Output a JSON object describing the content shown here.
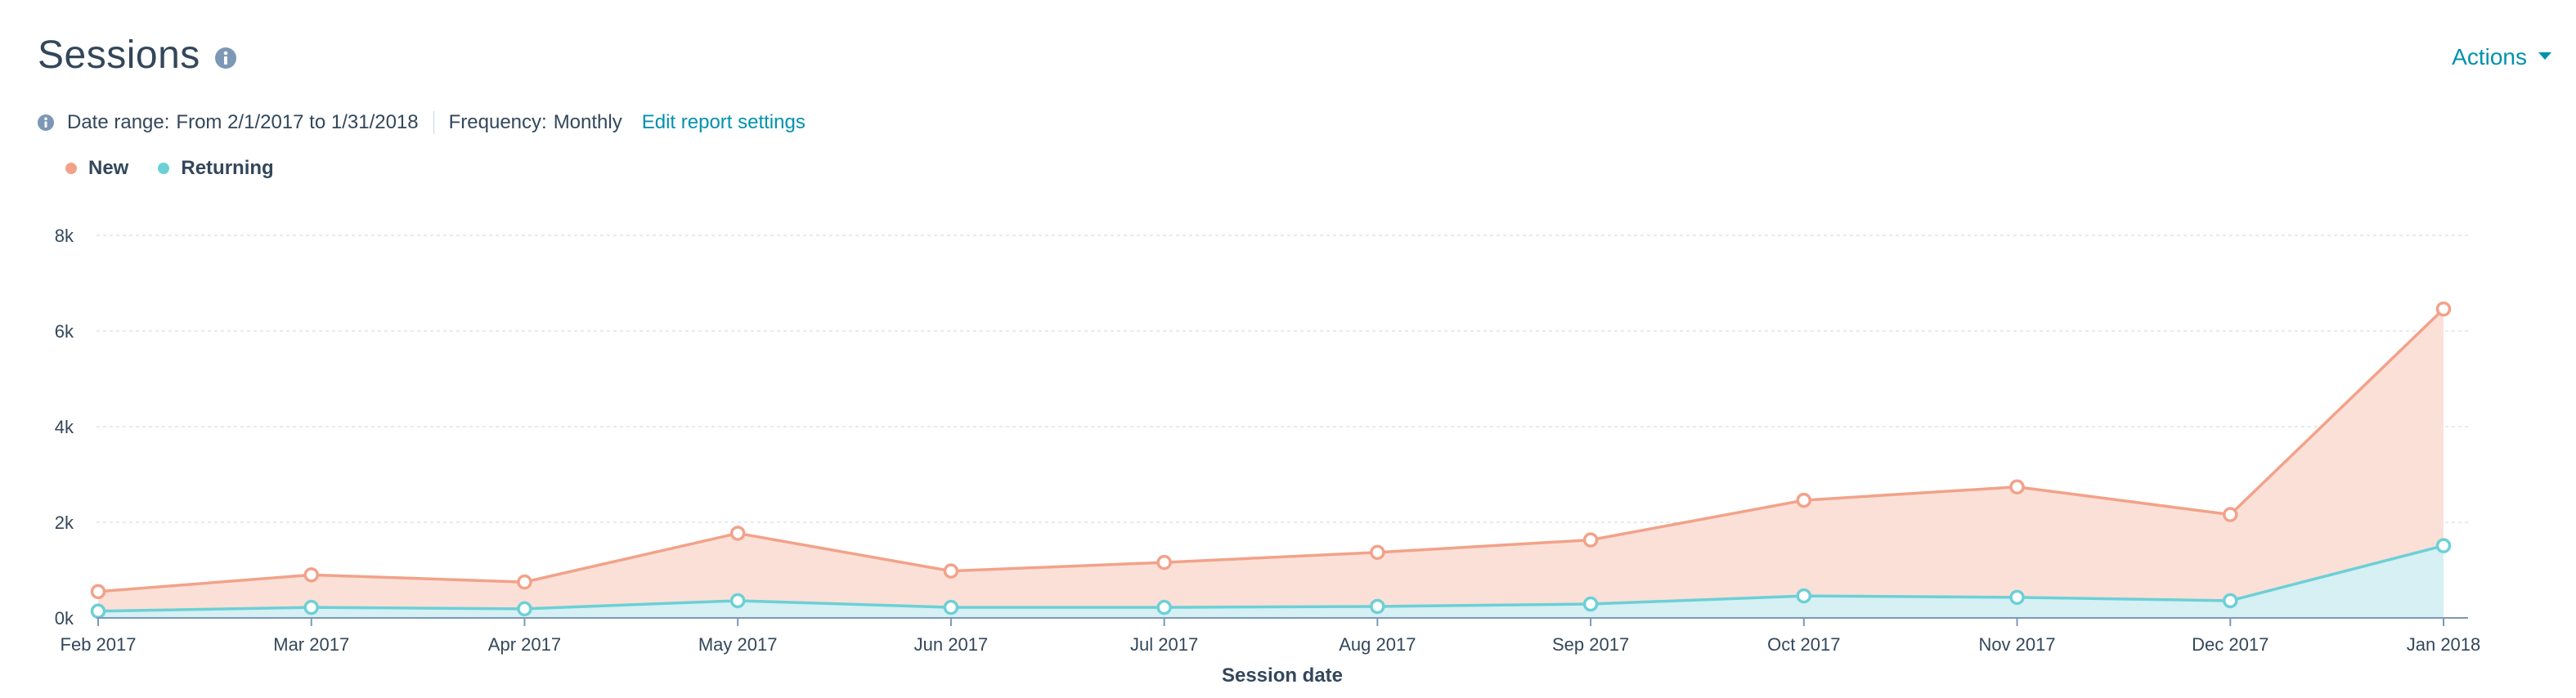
{
  "header": {
    "title": "Sessions",
    "actions_label": "Actions"
  },
  "meta": {
    "date_range_label": "Date range:",
    "date_range_value": "From 2/1/2017 to 1/31/2018",
    "frequency_label": "Frequency:",
    "frequency_value": "Monthly",
    "edit_link": "Edit report settings"
  },
  "icons": {
    "title_info": "info-icon",
    "meta_info": "info-icon",
    "actions_caret": "caret-down-icon"
  },
  "colors": {
    "new": "#f2a289",
    "new_fill": "#fbe0d8",
    "returning": "#6cd0d6",
    "returning_fill": "#d6f0f3",
    "link": "#0091ae"
  },
  "chart_data": {
    "type": "area",
    "stacked": false,
    "categories": [
      "Feb 2017",
      "Mar 2017",
      "Apr 2017",
      "May 2017",
      "Jun 2017",
      "Jul 2017",
      "Aug 2017",
      "Sep 2017",
      "Oct 2017",
      "Nov 2017",
      "Dec 2017",
      "Jan 2018"
    ],
    "series": [
      {
        "name": "New",
        "values": [
          550,
          900,
          750,
          1770,
          980,
          1160,
          1370,
          1630,
          2460,
          2740,
          2160,
          6460
        ]
      },
      {
        "name": "Returning",
        "values": [
          140,
          220,
          190,
          360,
          220,
          220,
          240,
          290,
          460,
          430,
          360,
          1510
        ]
      }
    ],
    "xlabel": "Session date",
    "ylabel": "",
    "ylim": [
      0,
      8000
    ],
    "yticks": [
      0,
      2000,
      4000,
      6000,
      8000
    ],
    "ytick_labels": [
      "0k",
      "2k",
      "4k",
      "6k",
      "8k"
    ],
    "grid": true,
    "legend_position": "top-left"
  }
}
